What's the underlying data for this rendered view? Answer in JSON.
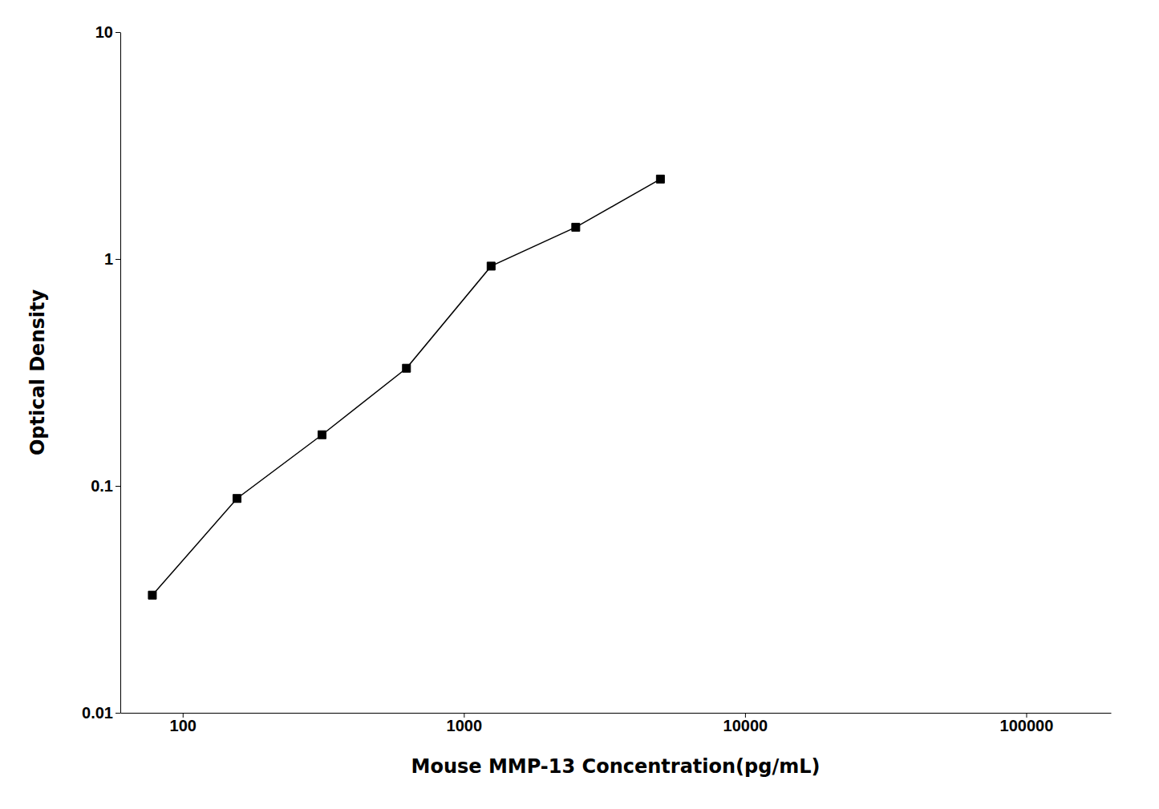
{
  "chart_data": {
    "type": "line",
    "x": [
      78,
      156,
      313,
      625,
      1250,
      2500,
      5000
    ],
    "values": [
      0.033,
      0.088,
      0.168,
      0.33,
      0.93,
      1.38,
      2.25
    ],
    "xlabel": "Mouse MMP-13 Concentration(pg/mL)",
    "ylabel": "Optical Density",
    "xlim": [
      60,
      200000
    ],
    "ylim": [
      0.01,
      10
    ],
    "xticks": [
      100,
      1000,
      10000,
      100000
    ],
    "yticks": [
      0.01,
      0.1,
      1,
      10
    ],
    "log": true,
    "color": "#000000",
    "marker": "square"
  }
}
